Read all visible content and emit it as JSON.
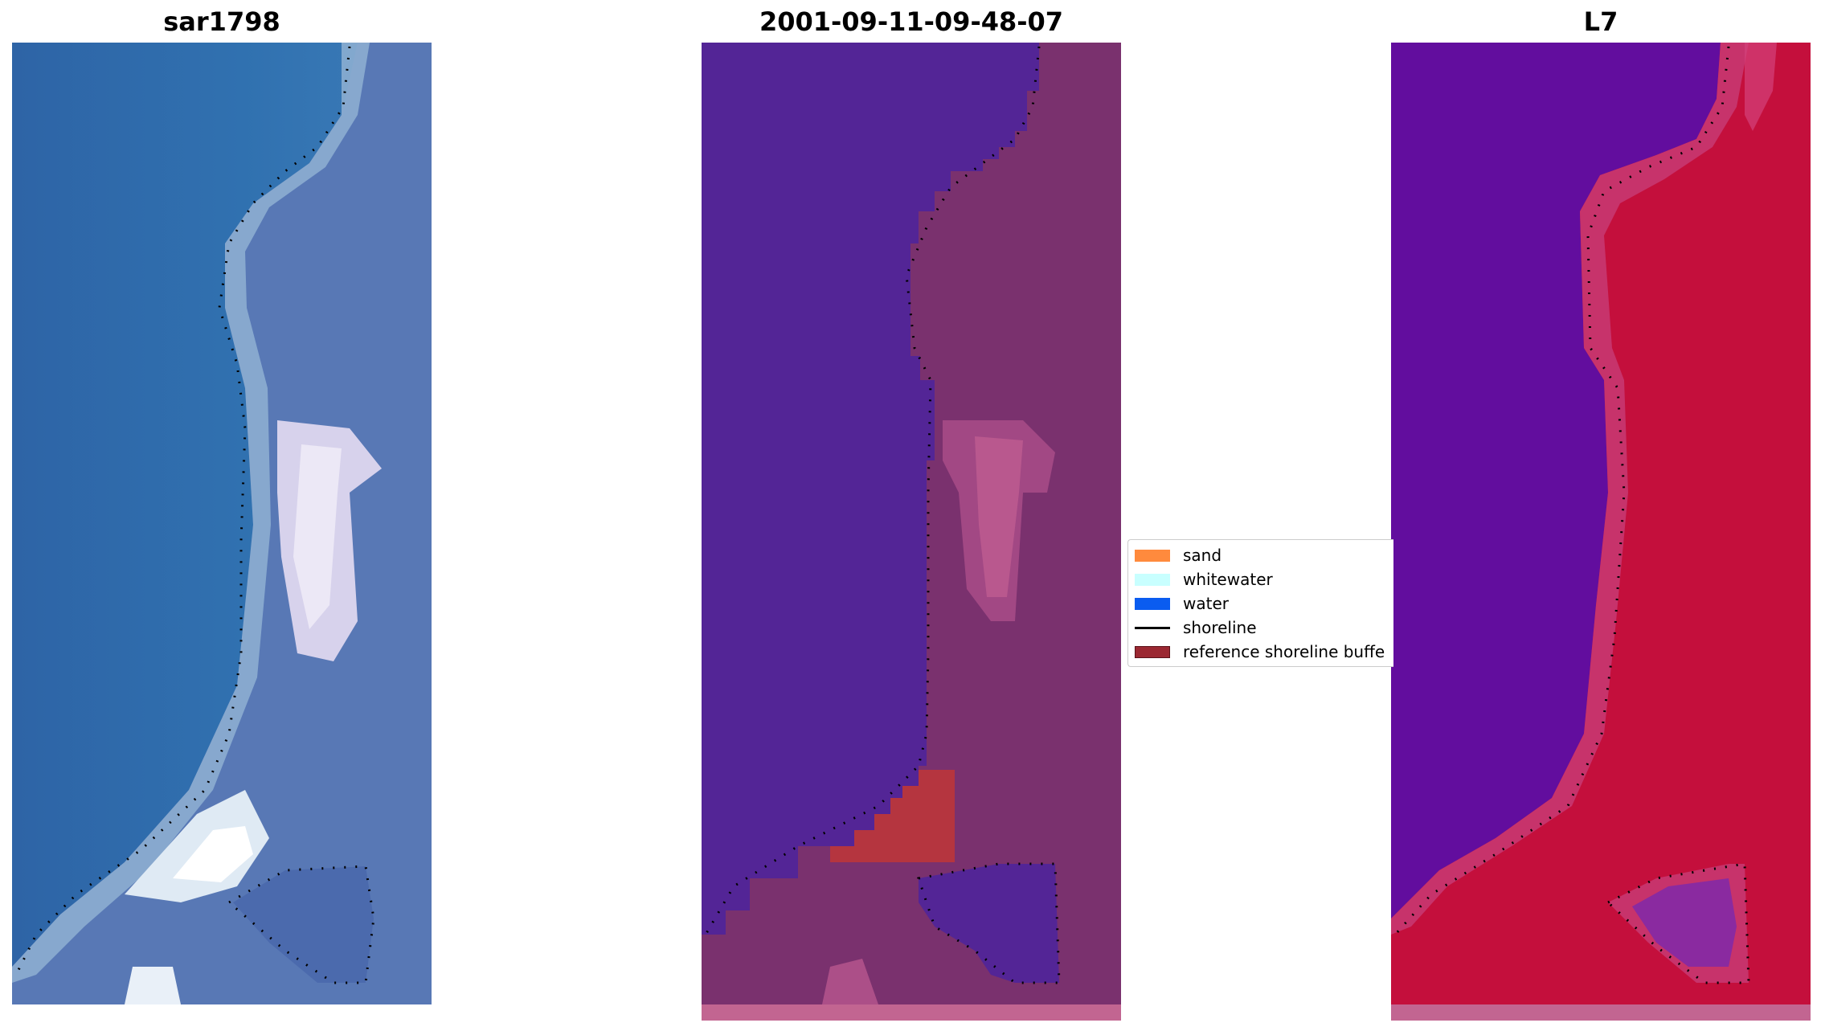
{
  "panels": [
    {
      "title": "sar1798"
    },
    {
      "title": "2001-09-11-09-48-07"
    },
    {
      "title": "L7"
    }
  ],
  "legend": {
    "items": [
      {
        "label": "sand",
        "color": "#ff8a3d",
        "kind": "patch"
      },
      {
        "label": "whitewater",
        "color": "#c8ffff",
        "kind": "patch"
      },
      {
        "label": "water",
        "color": "#0a5cf0",
        "kind": "patch"
      },
      {
        "label": "shoreline",
        "color": "#000000",
        "kind": "line"
      },
      {
        "label": "reference shoreline buffe",
        "color": "#9b2832",
        "kind": "patch"
      }
    ]
  },
  "colors": {
    "rgb_water": "#2f6aaa",
    "rgb_land": "#5a7cb8",
    "rgb_bright": "#e6e6f2",
    "class_water": "#532596",
    "class_land": "#7a316e",
    "class_pink": "#b9588e",
    "class_buffer": "#b5353f",
    "ndwi_water": "#620d9e",
    "ndwi_land": "#c40f3c",
    "ndwi_edge": "#c7336b"
  }
}
